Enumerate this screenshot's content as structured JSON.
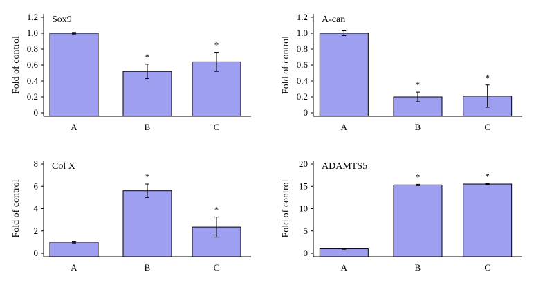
{
  "colors": {
    "bar": "#9f9ff2",
    "axis": "#000000",
    "background": "#ffffff"
  },
  "chart_data": [
    {
      "type": "bar",
      "title": "Sox9",
      "ylabel": "Fold of control",
      "xlabel": "",
      "categories": [
        "A",
        "B",
        "C"
      ],
      "values": [
        1.0,
        0.52,
        0.64
      ],
      "errors": [
        0.01,
        0.09,
        0.12
      ],
      "significance": [
        "",
        "*",
        "*"
      ],
      "ylim": [
        0,
        1.2
      ],
      "yticks": [
        0,
        0.2,
        0.4,
        0.6,
        0.8,
        1.0,
        1.2
      ],
      "ytick_labels": [
        "0",
        "0.2",
        "0.4",
        "0.6",
        "0.8",
        "1.0",
        "1.2"
      ],
      "grid": false
    },
    {
      "type": "bar",
      "title": "A-can",
      "ylabel": "Fold of control",
      "xlabel": "",
      "categories": [
        "A",
        "B",
        "C"
      ],
      "values": [
        1.0,
        0.2,
        0.21
      ],
      "errors": [
        0.03,
        0.06,
        0.14
      ],
      "significance": [
        "",
        "*",
        "*"
      ],
      "ylim": [
        0,
        1.2
      ],
      "yticks": [
        0,
        0.2,
        0.4,
        0.6,
        0.8,
        1.0,
        1.2
      ],
      "ytick_labels": [
        "0",
        "0.2",
        "0.4",
        "0.6",
        "0.8",
        "1.0",
        "1.2"
      ],
      "grid": false
    },
    {
      "type": "bar",
      "title": "Col X",
      "ylabel": "Fold of control",
      "xlabel": "",
      "categories": [
        "A",
        "B",
        "C"
      ],
      "values": [
        1.0,
        5.6,
        2.35
      ],
      "errors": [
        0.08,
        0.6,
        0.9
      ],
      "significance": [
        "",
        "*",
        "*"
      ],
      "ylim": [
        0,
        8
      ],
      "yticks": [
        0,
        2,
        4,
        6,
        8
      ],
      "ytick_labels": [
        "0",
        "2",
        "4",
        "6",
        "8"
      ],
      "grid": false
    },
    {
      "type": "bar",
      "title": "ADAMTS5",
      "ylabel": "Fold of control",
      "xlabel": "",
      "categories": [
        "A",
        "B",
        "C"
      ],
      "values": [
        1.0,
        15.3,
        15.5
      ],
      "errors": [
        0.1,
        0.15,
        0.1
      ],
      "significance": [
        "",
        "*",
        "*"
      ],
      "ylim": [
        0,
        20
      ],
      "yticks": [
        0,
        5,
        10,
        15,
        20
      ],
      "ytick_labels": [
        "0",
        "5",
        "10",
        "15",
        "20"
      ],
      "grid": false
    }
  ]
}
